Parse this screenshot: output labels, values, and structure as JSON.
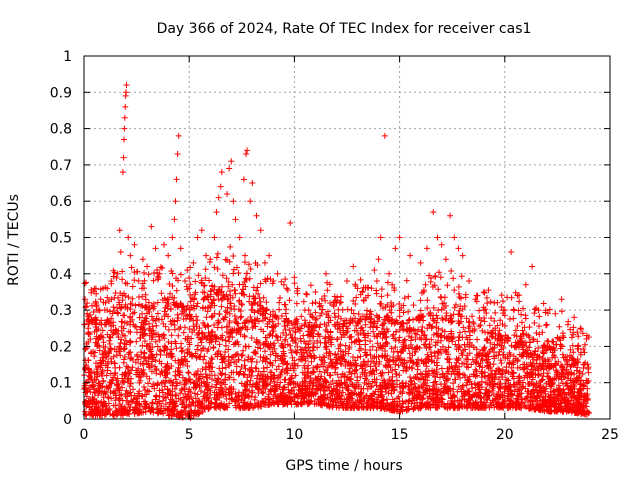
{
  "chart_data": {
    "type": "scatter",
    "title": "Day 366 of 2024, Rate Of TEC Index for receiver cas1",
    "xlabel": "GPS time / hours",
    "ylabel": "ROTI / TECUs",
    "xlim": [
      0,
      25
    ],
    "ylim": [
      0,
      1
    ],
    "xticks": [
      0,
      5,
      10,
      15,
      20,
      25
    ],
    "yticks": [
      0,
      0.1,
      0.2,
      0.3,
      0.4,
      0.5,
      0.6,
      0.7,
      0.8,
      0.9,
      1
    ],
    "xtick_labels": [
      "0",
      "5",
      "10",
      "15",
      "20",
      "25"
    ],
    "ytick_labels": [
      "0",
      "0.1",
      "0.2",
      "0.3",
      "0.4",
      "0.5",
      "0.6",
      "0.7",
      "0.8",
      "0.9",
      "1"
    ],
    "grid": true,
    "marker": "+",
    "color": "#ff0000",
    "series": [
      {
        "points": [
          [
            0.05,
            0.33
          ],
          [
            0.1,
            0.31
          ],
          [
            0.15,
            0.29
          ],
          [
            0.2,
            0.25
          ],
          [
            0.3,
            0.22
          ],
          [
            0.5,
            0.24
          ],
          [
            0.7,
            0.3
          ],
          [
            0.9,
            0.36
          ],
          [
            1.1,
            0.3
          ],
          [
            1.3,
            0.33
          ],
          [
            1.6,
            0.4
          ],
          [
            1.7,
            0.52
          ],
          [
            1.75,
            0.46
          ],
          [
            1.85,
            0.68
          ],
          [
            1.88,
            0.72
          ],
          [
            1.9,
            0.77
          ],
          [
            1.92,
            0.8
          ],
          [
            1.94,
            0.83
          ],
          [
            1.96,
            0.86
          ],
          [
            1.98,
            0.89
          ],
          [
            2.0,
            0.9
          ],
          [
            2.02,
            0.92
          ],
          [
            2.1,
            0.5
          ],
          [
            2.2,
            0.45
          ],
          [
            2.4,
            0.48
          ],
          [
            2.6,
            0.38
          ],
          [
            2.8,
            0.44
          ],
          [
            3.0,
            0.42
          ],
          [
            3.2,
            0.53
          ],
          [
            3.4,
            0.47
          ],
          [
            3.6,
            0.4
          ],
          [
            3.8,
            0.48
          ],
          [
            4.0,
            0.45
          ],
          [
            4.2,
            0.5
          ],
          [
            4.3,
            0.55
          ],
          [
            4.35,
            0.6
          ],
          [
            4.4,
            0.66
          ],
          [
            4.45,
            0.73
          ],
          [
            4.5,
            0.78
          ],
          [
            4.6,
            0.47
          ],
          [
            4.8,
            0.38
          ],
          [
            5.0,
            0.36
          ],
          [
            5.2,
            0.43
          ],
          [
            5.4,
            0.5
          ],
          [
            5.6,
            0.52
          ],
          [
            5.8,
            0.45
          ],
          [
            6.0,
            0.44
          ],
          [
            6.2,
            0.5
          ],
          [
            6.3,
            0.57
          ],
          [
            6.4,
            0.61
          ],
          [
            6.5,
            0.64
          ],
          [
            6.55,
            0.68
          ],
          [
            6.8,
            0.62
          ],
          [
            6.9,
            0.69
          ],
          [
            7.0,
            0.71
          ],
          [
            7.1,
            0.6
          ],
          [
            7.2,
            0.55
          ],
          [
            7.4,
            0.5
          ],
          [
            7.6,
            0.66
          ],
          [
            7.7,
            0.73
          ],
          [
            7.75,
            0.74
          ],
          [
            7.9,
            0.6
          ],
          [
            8.0,
            0.65
          ],
          [
            8.2,
            0.56
          ],
          [
            8.4,
            0.52
          ],
          [
            8.6,
            0.43
          ],
          [
            8.8,
            0.45
          ],
          [
            9.0,
            0.38
          ],
          [
            9.2,
            0.4
          ],
          [
            9.5,
            0.37
          ],
          [
            9.8,
            0.54
          ],
          [
            10.0,
            0.39
          ],
          [
            10.5,
            0.3
          ],
          [
            11.0,
            0.35
          ],
          [
            11.5,
            0.4
          ],
          [
            12.0,
            0.32
          ],
          [
            12.5,
            0.38
          ],
          [
            12.8,
            0.42
          ],
          [
            13.0,
            0.36
          ],
          [
            13.5,
            0.34
          ],
          [
            13.8,
            0.41
          ],
          [
            14.0,
            0.44
          ],
          [
            14.1,
            0.5
          ],
          [
            14.3,
            0.78
          ],
          [
            14.5,
            0.4
          ],
          [
            14.8,
            0.47
          ],
          [
            15.0,
            0.5
          ],
          [
            15.5,
            0.45
          ],
          [
            16.0,
            0.43
          ],
          [
            16.3,
            0.47
          ],
          [
            16.6,
            0.57
          ],
          [
            16.8,
            0.5
          ],
          [
            17.0,
            0.48
          ],
          [
            17.2,
            0.44
          ],
          [
            17.4,
            0.56
          ],
          [
            17.6,
            0.5
          ],
          [
            17.8,
            0.47
          ],
          [
            18.0,
            0.45
          ],
          [
            18.3,
            0.38
          ],
          [
            18.6,
            0.33
          ],
          [
            19.0,
            0.35
          ],
          [
            19.5,
            0.32
          ],
          [
            20.0,
            0.3
          ],
          [
            20.3,
            0.46
          ],
          [
            20.6,
            0.34
          ],
          [
            21.0,
            0.37
          ],
          [
            21.3,
            0.42
          ],
          [
            21.6,
            0.3
          ],
          [
            22.0,
            0.26
          ],
          [
            22.4,
            0.29
          ],
          [
            22.7,
            0.33
          ],
          [
            23.0,
            0.26
          ],
          [
            23.3,
            0.28
          ],
          [
            23.6,
            0.25
          ],
          [
            23.9,
            0.23
          ]
        ]
      }
    ],
    "envelope": {
      "x": [
        0,
        1,
        2,
        3,
        4,
        5,
        6,
        7,
        8,
        9,
        10,
        11,
        12,
        13,
        14,
        15,
        16,
        17,
        18,
        19,
        20,
        21,
        22,
        23,
        24
      ],
      "upper": [
        0.26,
        0.26,
        0.34,
        0.3,
        0.32,
        0.3,
        0.34,
        0.36,
        0.33,
        0.28,
        0.26,
        0.25,
        0.26,
        0.27,
        0.28,
        0.26,
        0.28,
        0.3,
        0.28,
        0.24,
        0.23,
        0.23,
        0.2,
        0.17,
        0.14
      ],
      "lower": [
        0.01,
        0.01,
        0.01,
        0.02,
        0.01,
        0.0,
        0.03,
        0.03,
        0.03,
        0.04,
        0.04,
        0.04,
        0.03,
        0.03,
        0.03,
        0.02,
        0.03,
        0.03,
        0.03,
        0.03,
        0.03,
        0.03,
        0.02,
        0.02,
        0.01
      ]
    }
  }
}
